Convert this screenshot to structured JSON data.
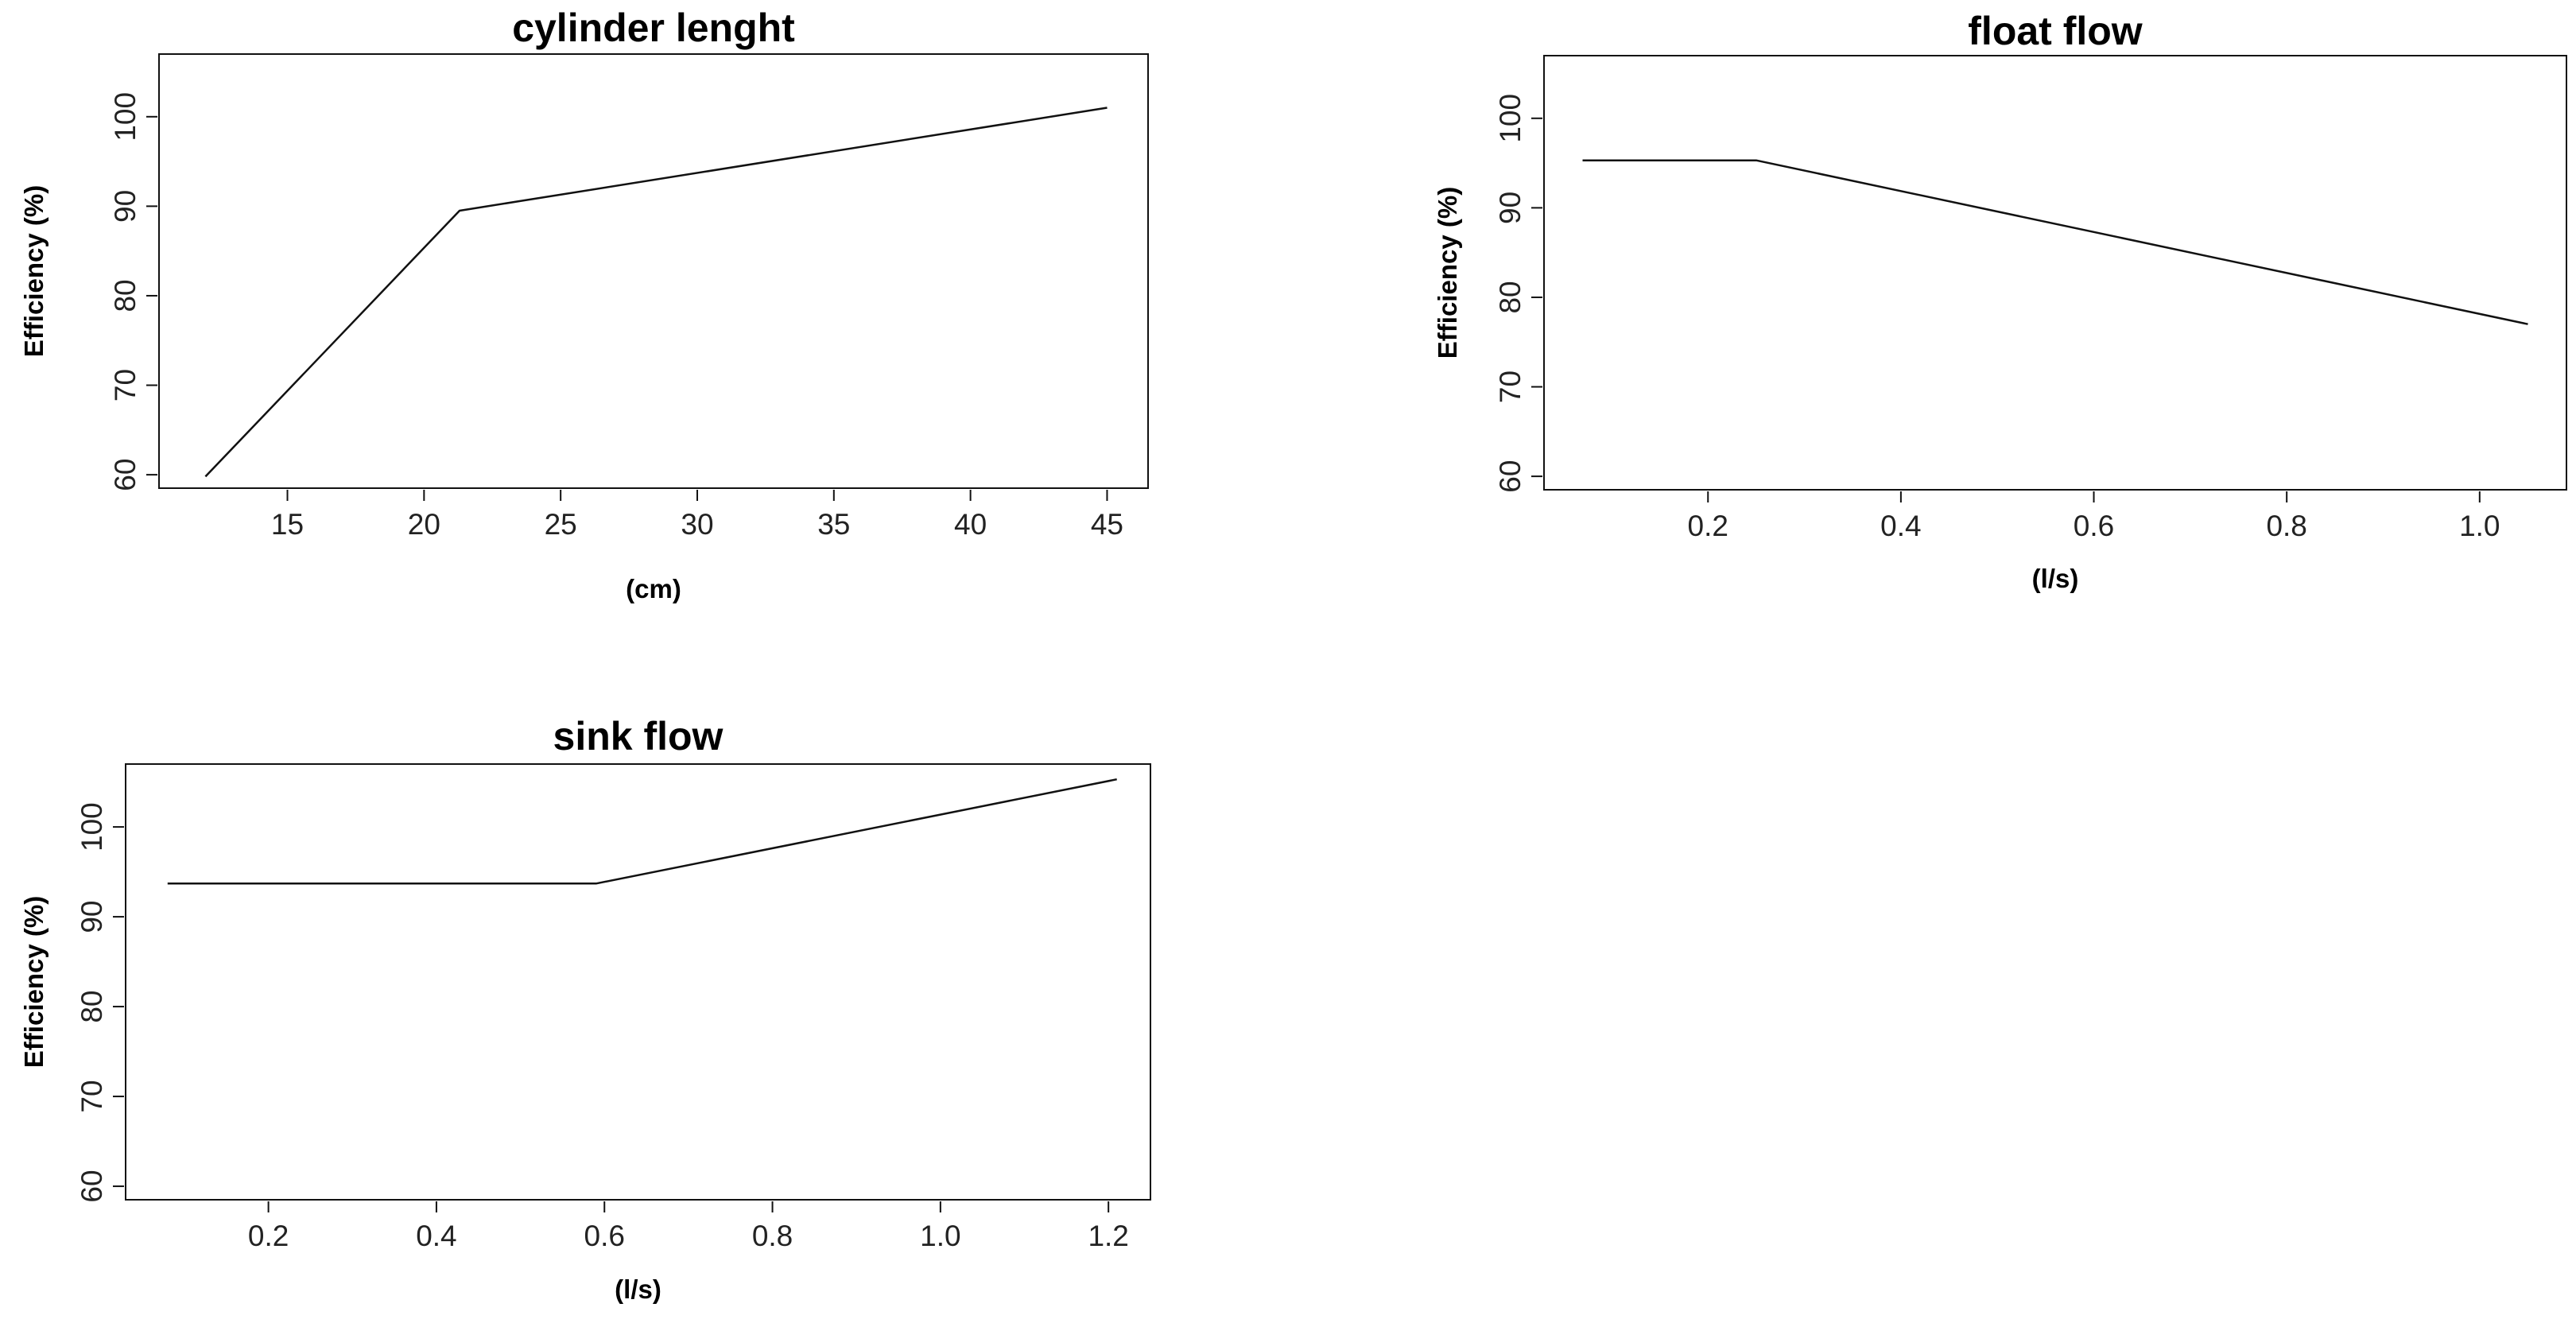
{
  "chart_data": [
    {
      "type": "line",
      "title": "cylinder lenght",
      "xlabel": "(cm)",
      "ylabel": "Efficiency (%)",
      "x": [
        12,
        21.3,
        45
      ],
      "y": [
        59.8,
        89.5,
        101
      ],
      "xlim": [
        10.3,
        46.5
      ],
      "ylim": [
        58.5,
        107
      ],
      "xticks": [
        15,
        20,
        25,
        30,
        35,
        40,
        45
      ],
      "yticks": [
        60,
        70,
        80,
        90,
        100
      ],
      "grid": false,
      "legend": "none"
    },
    {
      "type": "line",
      "title": "float  flow",
      "xlabel": "(l/s)",
      "ylabel": "Efficiency (%)",
      "x": [
        0.07,
        0.25,
        1.05
      ],
      "y": [
        95.3,
        95.3,
        77
      ],
      "xlim": [
        0.03,
        1.09
      ],
      "ylim": [
        58.5,
        107
      ],
      "xticks": [
        0.2,
        0.4,
        0.6,
        0.8,
        1.0
      ],
      "yticks": [
        60,
        70,
        80,
        90,
        100
      ],
      "grid": false,
      "legend": "none"
    },
    {
      "type": "line",
      "title": "sink flow",
      "xlabel": "(l/s)",
      "ylabel": "Efficiency (%)",
      "x": [
        0.08,
        0.59,
        1.21
      ],
      "y": [
        93.7,
        93.7,
        105.3
      ],
      "xlim": [
        0.03,
        1.25
      ],
      "ylim": [
        58.5,
        107
      ],
      "xticks": [
        0.2,
        0.4,
        0.6,
        0.8,
        1.0,
        1.2
      ],
      "yticks": [
        60,
        70,
        80,
        90,
        100
      ],
      "grid": false,
      "legend": "none"
    }
  ]
}
